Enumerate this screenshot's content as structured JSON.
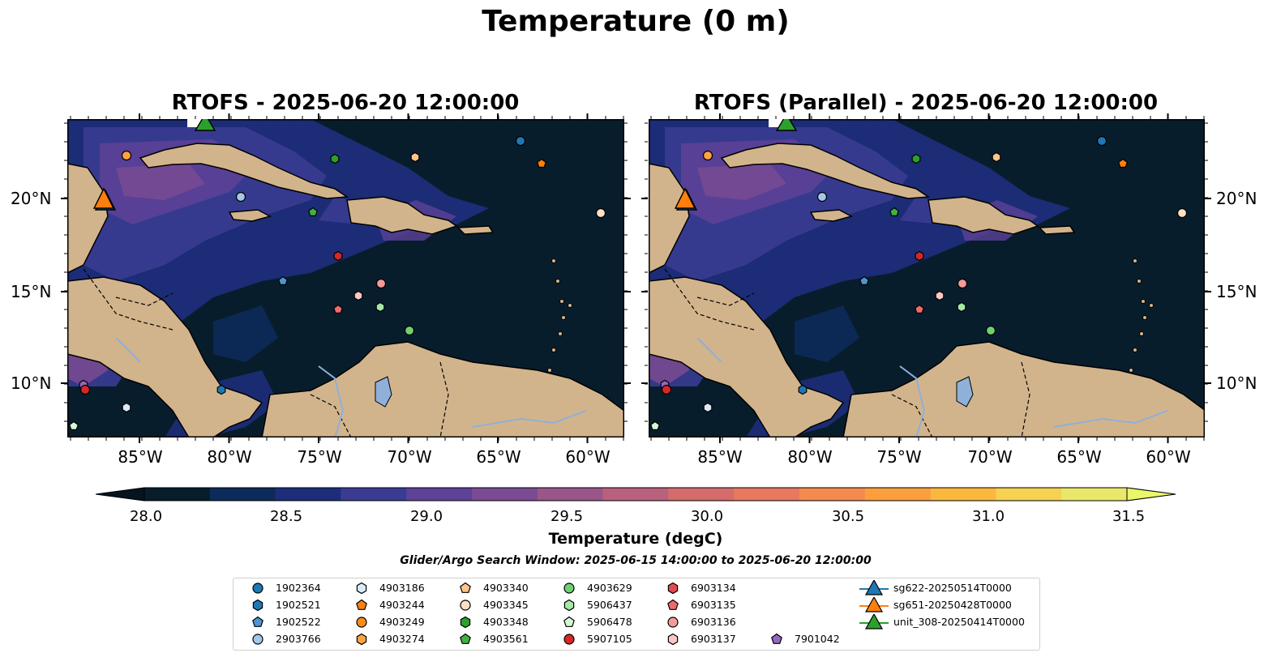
{
  "title": "Temperature (0 m)",
  "panels": [
    {
      "title": "RTOFS - 2025-06-20 12:00:00"
    },
    {
      "title": "RTOFS (Parallel) - 2025-06-20 12:00:00"
    }
  ],
  "lat_ticks": [
    "20°N",
    "15°N",
    "10°N"
  ],
  "lon_ticks": [
    "85°W",
    "80°W",
    "75°W",
    "70°W",
    "65°W",
    "60°W"
  ],
  "colorbar": {
    "label": "Temperature (degC)",
    "ticks": [
      "28.0",
      "28.5",
      "29.0",
      "29.5",
      "30.0",
      "30.5",
      "31.0",
      "31.5"
    ],
    "colors": [
      "#081d2c",
      "#0d2b5a",
      "#1e2d7a",
      "#3a3c92",
      "#5d4297",
      "#7a4b92",
      "#9a5689",
      "#b9617c",
      "#d46c6c",
      "#e8785e",
      "#f48a4f",
      "#fa9e3e",
      "#fbb73e",
      "#f6d152",
      "#e9e86a"
    ]
  },
  "search_window": "Glider/Argo Search Window: 2025-06-15 14:00:00 to 2025-06-20 12:00:00",
  "legend": [
    {
      "label": "1902364",
      "color": "#1f77b4",
      "marker": "circle"
    },
    {
      "label": "1902521",
      "color": "#1f77b4",
      "marker": "hexagon"
    },
    {
      "label": "1902522",
      "color": "#4f95d0",
      "marker": "pentagon"
    },
    {
      "label": "2903766",
      "color": "#a4c7ea",
      "marker": "circle"
    },
    {
      "label": "4903186",
      "color": "#dbeaf7",
      "marker": "hexagon"
    },
    {
      "label": "4903244",
      "color": "#ff7f0e",
      "marker": "pentagon"
    },
    {
      "label": "4903249",
      "color": "#ff8c1a",
      "marker": "circle"
    },
    {
      "label": "4903274",
      "color": "#ffa340",
      "marker": "hexagon"
    },
    {
      "label": "4903340",
      "color": "#ffc48a",
      "marker": "pentagon"
    },
    {
      "label": "4903345",
      "color": "#ffe0c4",
      "marker": "circle"
    },
    {
      "label": "4903348",
      "color": "#2ca02c",
      "marker": "hexagon"
    },
    {
      "label": "4903561",
      "color": "#3fb23f",
      "marker": "pentagon"
    },
    {
      "label": "4903629",
      "color": "#6fd06f",
      "marker": "circle"
    },
    {
      "label": "5906437",
      "color": "#a3e8a3",
      "marker": "hexagon"
    },
    {
      "label": "5906478",
      "color": "#d6f7d6",
      "marker": "pentagon"
    },
    {
      "label": "5907105",
      "color": "#d62728",
      "marker": "circle"
    },
    {
      "label": "6903134",
      "color": "#e04b4c",
      "marker": "hexagon"
    },
    {
      "label": "6903135",
      "color": "#ed6a6b",
      "marker": "pentagon"
    },
    {
      "label": "6903136",
      "color": "#f59a9a",
      "marker": "circle"
    },
    {
      "label": "6903137",
      "color": "#fbc6c6",
      "marker": "hexagon"
    },
    {
      "label": "7901042",
      "color": "#9467bd",
      "marker": "pentagon"
    },
    {
      "label": "sg622-20250514T0000",
      "color": "#1f77b4",
      "marker": "triangle"
    },
    {
      "label": "sg651-20250428T0000",
      "color": "#ff7f0e",
      "marker": "triangle"
    },
    {
      "label": "unit_308-20250414T0000",
      "color": "#2ca02c",
      "marker": "triangle"
    }
  ]
}
